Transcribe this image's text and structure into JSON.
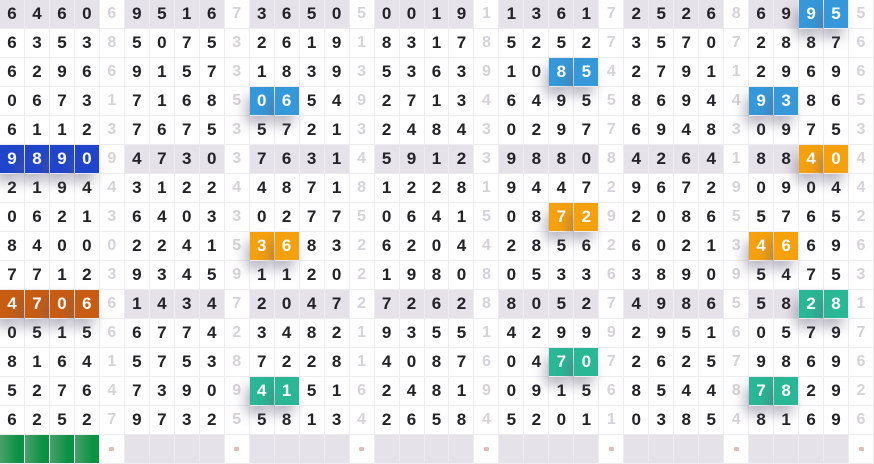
{
  "chart_data": {
    "type": "table",
    "title": "",
    "description": "Digit trend grid: 15 draw rows, each with 7 four-digit groups separated by faint single digits; highlighted digit pairs and groups; bottom summary row with green bar cells and dot markers under separator columns",
    "columns_total": 35,
    "groups_per_row": 7,
    "digits_per_group": 4,
    "gray_rows": [
      1,
      6,
      11
    ],
    "rows": [
      {
        "groups": [
          "6460",
          "9516",
          "3650",
          "0019",
          "1361",
          "2526",
          "6995"
        ],
        "separators": [
          "6",
          "7",
          "5",
          "1",
          "7",
          "8",
          "5"
        ]
      },
      {
        "groups": [
          "6353",
          "5075",
          "2619",
          "8317",
          "5252",
          "3570",
          "2887"
        ],
        "separators": [
          "8",
          "3",
          "1",
          "8",
          "7",
          "7",
          "6"
        ]
      },
      {
        "groups": [
          "6296",
          "9157",
          "1839",
          "5363",
          "1085",
          "2791",
          "2969"
        ],
        "separators": [
          "6",
          "3",
          "3",
          "9",
          "4",
          "1",
          "6"
        ]
      },
      {
        "groups": [
          "0673",
          "7168",
          "0654",
          "2713",
          "6495",
          "8694",
          "9386"
        ],
        "separators": [
          "1",
          "5",
          "9",
          "4",
          "5",
          "4",
          "5"
        ]
      },
      {
        "groups": [
          "6112",
          "7675",
          "5721",
          "2484",
          "0297",
          "6948",
          "0975"
        ],
        "separators": [
          "3",
          "3",
          "3",
          "3",
          "7",
          "3",
          "3"
        ]
      },
      {
        "groups": [
          "9890",
          "4730",
          "7631",
          "5912",
          "9880",
          "4264",
          "8840"
        ],
        "separators": [
          "9",
          "3",
          "4",
          "3",
          "8",
          "1",
          "4"
        ]
      },
      {
        "groups": [
          "2194",
          "3122",
          "4871",
          "1228",
          "9447",
          "9672",
          "0904"
        ],
        "separators": [
          "4",
          "4",
          "8",
          "1",
          "2",
          "9",
          "4"
        ]
      },
      {
        "groups": [
          "0621",
          "6403",
          "0277",
          "0641",
          "0872",
          "2086",
          "5765"
        ],
        "separators": [
          "3",
          "3",
          "5",
          "5",
          "9",
          "5",
          "2"
        ]
      },
      {
        "groups": [
          "8400",
          "2241",
          "3683",
          "6204",
          "2856",
          "6021",
          "4669"
        ],
        "separators": [
          "0",
          "5",
          "2",
          "4",
          "2",
          "3",
          "6"
        ]
      },
      {
        "groups": [
          "7712",
          "9345",
          "1120",
          "1980",
          "0533",
          "3890",
          "5475"
        ],
        "separators": [
          "3",
          "9",
          "2",
          "8",
          "6",
          "9",
          "3"
        ]
      },
      {
        "groups": [
          "4706",
          "1434",
          "2047",
          "7262",
          "8052",
          "4986",
          "5828"
        ],
        "separators": [
          "6",
          "7",
          "2",
          "8",
          "7",
          "5",
          "1"
        ]
      },
      {
        "groups": [
          "0515",
          "6774",
          "3482",
          "9355",
          "4299",
          "2951",
          "0579"
        ],
        "separators": [
          "6",
          "2",
          "1",
          "1",
          "9",
          "6",
          "7"
        ]
      },
      {
        "groups": [
          "8164",
          "5753",
          "7228",
          "4087",
          "0470",
          "2625",
          "9869"
        ],
        "separators": [
          "1",
          "8",
          "1",
          "6",
          "7",
          "7",
          "6"
        ]
      },
      {
        "groups": [
          "5276",
          "7390",
          "4151",
          "2481",
          "0915",
          "8544",
          "7829"
        ],
        "separators": [
          "4",
          "9",
          "6",
          "9",
          "6",
          "8",
          "2"
        ]
      },
      {
        "groups": [
          "6252",
          "9732",
          "5813",
          "2658",
          "5201",
          "0385",
          "8169"
        ],
        "separators": [
          "7",
          "5",
          "4",
          "4",
          "1",
          "4",
          "6"
        ]
      }
    ],
    "highlights": [
      {
        "row": 1,
        "group": 7,
        "positions": [
          3,
          4
        ],
        "color": "blue",
        "digits": "95"
      },
      {
        "row": 3,
        "group": 5,
        "positions": [
          3,
          4
        ],
        "color": "blue",
        "digits": "85"
      },
      {
        "row": 4,
        "group": 3,
        "positions": [
          1,
          2
        ],
        "color": "blue",
        "digits": "06"
      },
      {
        "row": 4,
        "group": 7,
        "positions": [
          1,
          2
        ],
        "color": "blue",
        "digits": "93"
      },
      {
        "row": 6,
        "group": 1,
        "positions": [
          1,
          2,
          3,
          4
        ],
        "color": "navy",
        "digits": "9890"
      },
      {
        "row": 6,
        "group": 7,
        "positions": [
          3,
          4
        ],
        "color": "orange",
        "digits": "40"
      },
      {
        "row": 8,
        "group": 5,
        "positions": [
          3,
          4
        ],
        "color": "orange",
        "digits": "72"
      },
      {
        "row": 9,
        "group": 3,
        "positions": [
          1,
          2
        ],
        "color": "orange",
        "digits": "36"
      },
      {
        "row": 9,
        "group": 7,
        "positions": [
          1,
          2
        ],
        "color": "orange",
        "digits": "46"
      },
      {
        "row": 11,
        "group": 1,
        "positions": [
          1,
          2,
          3,
          4
        ],
        "color": "dark_orange",
        "digits": "4706"
      },
      {
        "row": 11,
        "group": 7,
        "positions": [
          3,
          4
        ],
        "color": "teal",
        "digits": "28"
      },
      {
        "row": 13,
        "group": 5,
        "positions": [
          3,
          4
        ],
        "color": "teal",
        "digits": "70"
      },
      {
        "row": 14,
        "group": 3,
        "positions": [
          1,
          2
        ],
        "color": "teal",
        "digits": "41"
      },
      {
        "row": 14,
        "group": 7,
        "positions": [
          1,
          2
        ],
        "color": "teal",
        "digits": "78"
      }
    ],
    "summary_row": {
      "green_group": 1,
      "dot_after_each_group": true
    },
    "colors": {
      "background": "#ffffff",
      "digit": "#232327",
      "separator_digit": "#d5d2d9",
      "row_stripe": "#e6e2e9",
      "grid_line": "#edecf1",
      "highlight_blue": "#3598d8",
      "highlight_navy": "#2045cb",
      "highlight_orange": "#f5a00d",
      "highlight_dark_orange": "#c75c12",
      "highlight_teal": "#29b795",
      "summary_green": "#0a9144",
      "summary_green_edge": "#4aa069",
      "dot_marker": "#d8b4a8"
    }
  }
}
